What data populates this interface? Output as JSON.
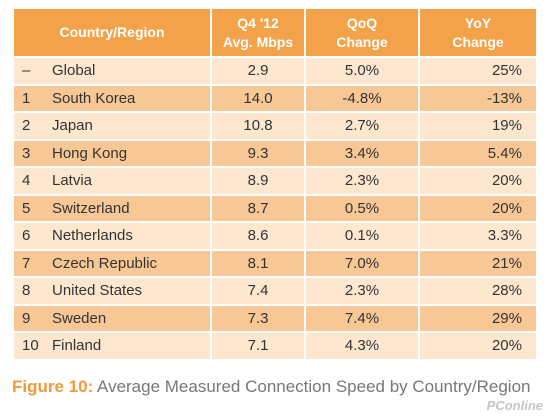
{
  "table": {
    "headers": {
      "country_region": "Country/Region",
      "speed_line1": "Q4 '12",
      "speed_line2": "Avg. Mbps",
      "qoq_line1": "QoQ",
      "qoq_line2": "Change",
      "yoy_line1": "YoY",
      "yoy_line2": "Change"
    },
    "rows": [
      {
        "rank": "–",
        "country": "Global",
        "speed": "2.9",
        "qoq": "5.0%",
        "yoy": "25%"
      },
      {
        "rank": "1",
        "country": "South Korea",
        "speed": "14.0",
        "qoq": "-4.8%",
        "yoy": "-13%"
      },
      {
        "rank": "2",
        "country": "Japan",
        "speed": "10.8",
        "qoq": "2.7%",
        "yoy": "19%"
      },
      {
        "rank": "3",
        "country": "Hong Kong",
        "speed": "9.3",
        "qoq": "3.4%",
        "yoy": "5.4%"
      },
      {
        "rank": "4",
        "country": "Latvia",
        "speed": "8.9",
        "qoq": "2.3%",
        "yoy": "20%"
      },
      {
        "rank": "5",
        "country": "Switzerland",
        "speed": "8.7",
        "qoq": "0.5%",
        "yoy": "20%"
      },
      {
        "rank": "6",
        "country": "Netherlands",
        "speed": "8.6",
        "qoq": "0.1%",
        "yoy": "3.3%"
      },
      {
        "rank": "7",
        "country": "Czech Republic",
        "speed": "8.1",
        "qoq": "7.0%",
        "yoy": "21%"
      },
      {
        "rank": "8",
        "country": "United States",
        "speed": "7.4",
        "qoq": "2.3%",
        "yoy": "28%"
      },
      {
        "rank": "9",
        "country": "Sweden",
        "speed": "7.3",
        "qoq": "7.4%",
        "yoy": "29%"
      },
      {
        "rank": "10",
        "country": "Finland",
        "speed": "7.1",
        "qoq": "4.3%",
        "yoy": "20%"
      }
    ]
  },
  "caption": {
    "label": "Figure 10:",
    "text": " Average Measured Connection Speed by Country/Region"
  },
  "watermark": "PConline",
  "colors": {
    "header": "#f4a24a",
    "row_light": "#fde8cf",
    "row_dark": "#f7c795",
    "figure_label": "#f29a3a"
  }
}
